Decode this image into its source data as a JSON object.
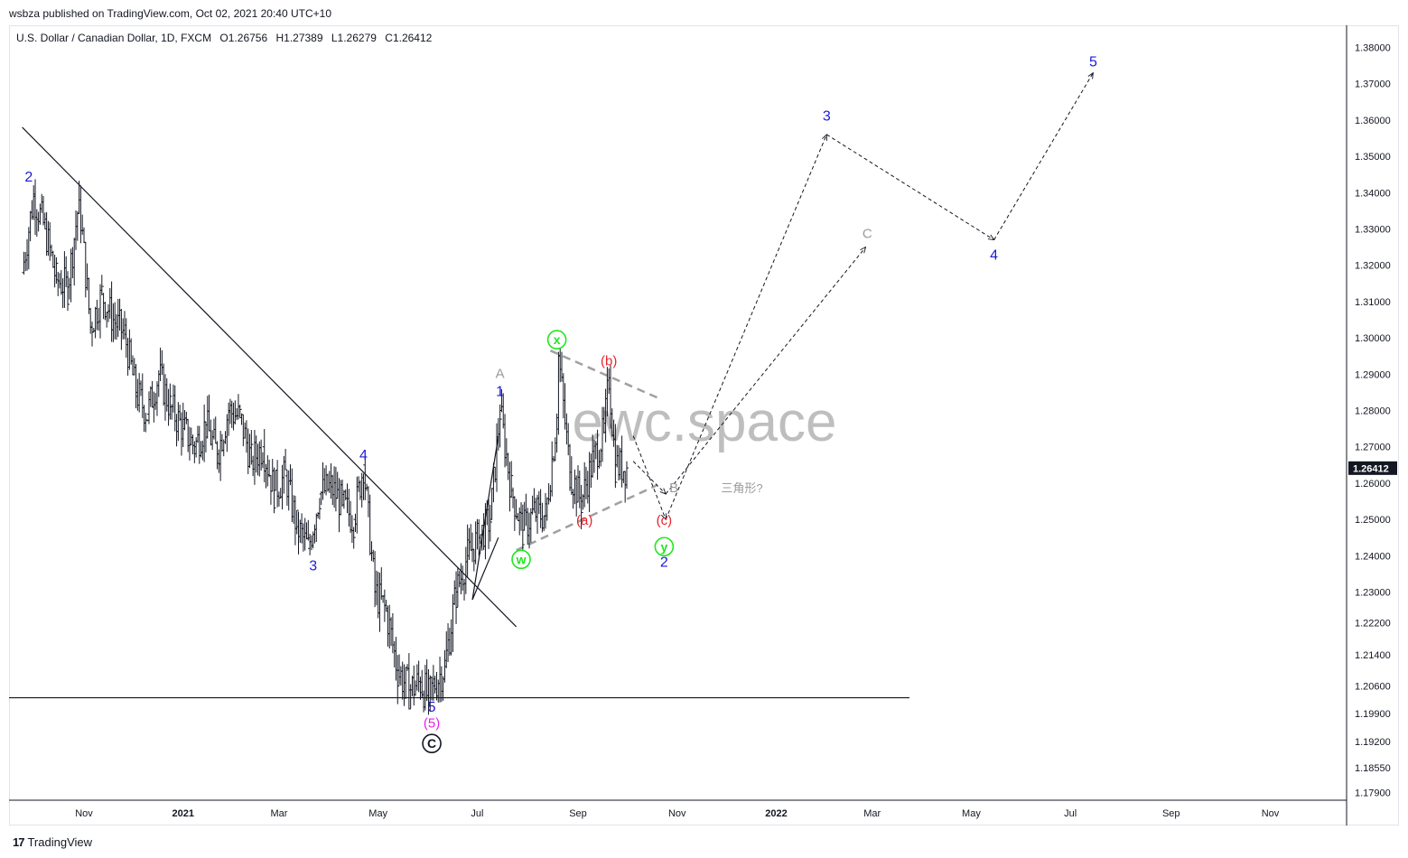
{
  "header": {
    "published": "wsbza published on TradingView.com, Oct 02, 2021 20:40 UTC+10"
  },
  "symbol": {
    "name": "U.S. Dollar / Canadian Dollar, 1D, FXCM",
    "open": "O1.26756",
    "high": "H1.27389",
    "low": "L1.26279",
    "close": "C1.26412"
  },
  "footer": {
    "brand": "TradingView",
    "brand_mark": "17"
  },
  "colors": {
    "blue": "#1a1adb",
    "red": "#e8242c",
    "green": "#1ee81e",
    "gray": "#9a9a9a",
    "magenta": "#e81ee8",
    "black": "#131722",
    "price_tag": "#131722"
  },
  "chart_data": {
    "type": "candlestick",
    "title": "",
    "xlabel": "",
    "ylabel": "",
    "x_tick_labels": [
      "Nov",
      "2021",
      "Mar",
      "May",
      "Jul",
      "Sep",
      "Nov",
      "2022",
      "Mar",
      "May",
      "Jul",
      "Sep",
      "Nov"
    ],
    "y_tick_labels": [
      "1.38000",
      "1.37000",
      "1.36000",
      "1.35000",
      "1.34000",
      "1.33000",
      "1.32000",
      "1.31000",
      "1.30000",
      "1.29000",
      "1.28000",
      "1.27000",
      "1.26000",
      "1.25000",
      "1.24000",
      "1.23000",
      "1.22200",
      "1.21400",
      "1.20600",
      "1.19900",
      "1.19200",
      "1.18550",
      "1.17900"
    ],
    "last_price": "1.26412",
    "watermark": "ewc.space",
    "price_path": [
      [
        "2020-09-24",
        1.318
      ],
      [
        "2020-10-01",
        1.339
      ],
      [
        "2020-10-08",
        1.33
      ],
      [
        "2020-10-15",
        1.316
      ],
      [
        "2020-10-22",
        1.314
      ],
      [
        "2020-10-29",
        1.338
      ],
      [
        "2020-11-05",
        1.303
      ],
      [
        "2020-11-12",
        1.312
      ],
      [
        "2020-11-19",
        1.305
      ],
      [
        "2020-11-26",
        1.301
      ],
      [
        "2020-12-03",
        1.285
      ],
      [
        "2020-12-10",
        1.279
      ],
      [
        "2020-12-17",
        1.29
      ],
      [
        "2020-12-24",
        1.281
      ],
      [
        "2021-01-01",
        1.275
      ],
      [
        "2021-01-08",
        1.27
      ],
      [
        "2021-01-15",
        1.276
      ],
      [
        "2021-01-22",
        1.268
      ],
      [
        "2021-01-29",
        1.28
      ],
      [
        "2021-02-05",
        1.278
      ],
      [
        "2021-02-12",
        1.266
      ],
      [
        "2021-02-19",
        1.27
      ],
      [
        "2021-02-26",
        1.258
      ],
      [
        "2021-03-05",
        1.262
      ],
      [
        "2021-03-12",
        1.248
      ],
      [
        "2021-03-19",
        1.242
      ],
      [
        "2021-03-26",
        1.257
      ],
      [
        "2021-04-02",
        1.259
      ],
      [
        "2021-04-09",
        1.254
      ],
      [
        "2021-04-16",
        1.25
      ],
      [
        "2021-04-22",
        1.265
      ],
      [
        "2021-04-29",
        1.23
      ],
      [
        "2021-05-06",
        1.225
      ],
      [
        "2021-05-13",
        1.21
      ],
      [
        "2021-05-20",
        1.205
      ],
      [
        "2021-05-27",
        1.207
      ],
      [
        "2021-06-01",
        1.203
      ],
      [
        "2021-06-04",
        1.206
      ],
      [
        "2021-06-11",
        1.211
      ],
      [
        "2021-06-18",
        1.23
      ],
      [
        "2021-06-25",
        1.24
      ],
      [
        "2021-07-02",
        1.245
      ],
      [
        "2021-07-09",
        1.25
      ],
      [
        "2021-07-15",
        1.28
      ],
      [
        "2021-07-22",
        1.258
      ],
      [
        "2021-07-29",
        1.247
      ],
      [
        "2021-08-05",
        1.252
      ],
      [
        "2021-08-12",
        1.251
      ],
      [
        "2021-08-19",
        1.278
      ],
      [
        "2021-08-20",
        1.295
      ],
      [
        "2021-08-27",
        1.263
      ],
      [
        "2021-09-03",
        1.255
      ],
      [
        "2021-09-10",
        1.266
      ],
      [
        "2021-09-17",
        1.274
      ],
      [
        "2021-09-20",
        1.289
      ],
      [
        "2021-09-24",
        1.265
      ],
      [
        "2021-10-01",
        1.264
      ]
    ],
    "projection_primary": [
      [
        "2021-10-25",
        1.25
      ],
      [
        "2022-02-01",
        1.356
      ],
      [
        "2022-05-15",
        1.327
      ],
      [
        "2022-07-15",
        1.373
      ]
    ],
    "projection_alt_c": [
      [
        "2021-10-05",
        1.266
      ],
      [
        "2021-10-25",
        1.257
      ],
      [
        "2022-02-25",
        1.325
      ]
    ],
    "trendline": [
      [
        "2020-09-24",
        1.358
      ],
      [
        "2021-07-25",
        1.221
      ]
    ],
    "support_level": 1.203,
    "triangle_upper": [
      [
        "2021-08-15",
        1.2965
      ],
      [
        "2021-10-20",
        1.2835
      ]
    ],
    "triangle_lower": [
      [
        "2021-07-25",
        1.2415
      ],
      [
        "2021-10-20",
        1.2595
      ]
    ],
    "wedge_lines": [
      [
        [
          "2021-06-28",
          1.228
        ],
        [
          "2021-07-14",
          1.273
        ]
      ],
      [
        [
          "2021-06-28",
          1.228
        ],
        [
          "2021-07-14",
          1.245
        ]
      ]
    ],
    "wave_labels": [
      {
        "text": "2",
        "date": "2020-09-28",
        "price": 1.343,
        "color": "blue"
      },
      {
        "text": "3",
        "date": "2021-03-22",
        "price": 1.236,
        "color": "blue"
      },
      {
        "text": "4",
        "date": "2021-04-22",
        "price": 1.2665,
        "color": "blue"
      },
      {
        "text": "5",
        "date": "2021-06-03",
        "price": 1.1995,
        "color": "blue"
      },
      {
        "text": "(5)",
        "date": "2021-06-03",
        "price": 1.1955,
        "color": "magenta"
      },
      {
        "text": "A",
        "date": "2021-07-15",
        "price": 1.289,
        "color": "gray"
      },
      {
        "text": "1",
        "date": "2021-07-15",
        "price": 1.284,
        "color": "blue"
      },
      {
        "text": "(b)",
        "date": "2021-09-20",
        "price": 1.2925,
        "color": "red"
      },
      {
        "text": "(a)",
        "date": "2021-09-05",
        "price": 1.2485,
        "color": "red"
      },
      {
        "text": "(c)",
        "date": "2021-10-24",
        "price": 1.2485,
        "color": "red"
      },
      {
        "text": "2",
        "date": "2021-10-24",
        "price": 1.237,
        "color": "blue"
      },
      {
        "text": "B",
        "date": "2021-10-30",
        "price": 1.2575,
        "color": "gray"
      },
      {
        "text": "三角形?",
        "date": "2021-11-28",
        "price": 1.2575,
        "color": "gray",
        "small": true
      },
      {
        "text": "3",
        "date": "2022-02-01",
        "price": 1.3598,
        "color": "blue"
      },
      {
        "text": "C",
        "date": "2022-02-26",
        "price": 1.3275,
        "color": "gray"
      },
      {
        "text": "4",
        "date": "2022-05-15",
        "price": 1.3215,
        "color": "blue"
      },
      {
        "text": "5",
        "date": "2022-07-15",
        "price": 1.3748,
        "color": "blue"
      }
    ],
    "circled_labels": [
      {
        "text": "C",
        "date": "2021-06-03",
        "price": 1.1915,
        "color": "black"
      },
      {
        "text": "x",
        "date": "2021-08-19",
        "price": 1.2995,
        "color": "green"
      },
      {
        "text": "w",
        "date": "2021-07-28",
        "price": 1.239,
        "color": "green"
      },
      {
        "text": "y",
        "date": "2021-10-24",
        "price": 1.2425,
        "color": "green"
      }
    ],
    "grid": false
  }
}
